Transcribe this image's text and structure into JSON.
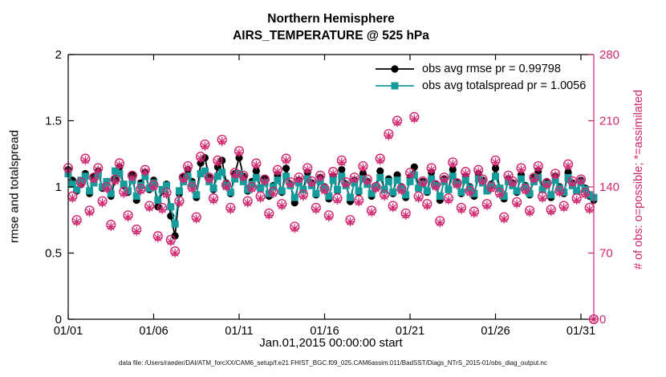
{
  "figure": {
    "colors": {
      "rmse": "#000000",
      "totalspread": "#149c9c",
      "obs": "#d02670",
      "axis": "#000000",
      "background": "#ffffff"
    }
  },
  "chart_data": {
    "type": "line",
    "title": [
      "Northern Hemisphere",
      "AIRS_TEMPERATURE @ 525 hPa"
    ],
    "xlabel": "Jan.01,2015 00:00:00 start",
    "footer": "data file: /Users/raeder/DAI/ATM_forcXX/CAM6_setup/f.e21.FHIST_BGC.f09_025.CAM6assim.011/BadSST/Diags_NTrS_2015-01/obs_diag_output.nc",
    "legend": [
      "obs avg rmse pr = 0.99798",
      "obs avg totalspread pr = 1.0056"
    ],
    "legend_position": "upper-right-inside",
    "grid": false,
    "x": {
      "start": 0,
      "step": 0.25,
      "count": 124,
      "unit": "days since Jan 01 2015"
    },
    "x_ticks": {
      "values": [
        0,
        5,
        10,
        15,
        20,
        25,
        30
      ],
      "labels": [
        "01/01",
        "01/06",
        "01/11",
        "01/16",
        "01/21",
        "01/26",
        "01/31"
      ]
    },
    "left_axis": {
      "label": "rmse and totalspread",
      "range": [
        0,
        2
      ],
      "tick_values": [
        0,
        0.5,
        1,
        1.5,
        2
      ],
      "tick_labels": [
        "0",
        "0.5",
        "1",
        "1.5",
        "2"
      ]
    },
    "right_axis": {
      "label": "# of obs: o=possible; *=assimilated",
      "range": [
        0,
        280
      ],
      "tick_values": [
        0,
        70,
        140,
        210,
        280
      ],
      "tick_labels": [
        "0",
        "70",
        "140",
        "210",
        "280"
      ]
    },
    "series": [
      {
        "id": "rmse",
        "name": "obs avg rmse",
        "axis": "left",
        "marker": "filled-circle",
        "color": "#000000",
        "line": true,
        "values": [
          1.13,
          1.05,
          0.97,
          1.02,
          1.1,
          0.95,
          1.08,
          1.12,
          0.99,
          1.04,
          0.93,
          1.06,
          1.15,
          1.01,
          0.96,
          1.09,
          0.9,
          1.03,
          1.11,
          0.98,
          1.05,
          0.85,
          0.97,
          1.02,
          0.78,
          0.63,
          0.95,
          1.08,
          1.13,
          1.04,
          0.92,
          1.18,
          1.22,
          1.07,
          0.98,
          1.15,
          1.2,
          1.03,
          0.95,
          1.1,
          1.22,
          1.08,
          0.97,
          1.04,
          1.12,
          0.99,
          1.06,
          0.93,
          1.01,
          1.09,
          0.96,
          1.14,
          1.02,
          0.88,
          1.05,
          0.98,
          1.11,
          1.03,
          0.94,
          1.07,
          1.0,
          0.91,
          1.08,
          0.97,
          1.13,
          1.02,
          0.89,
          1.05,
          0.96,
          1.1,
          1.04,
          0.93,
          1.01,
          1.12,
          0.98,
          1.06,
          0.95,
          1.09,
          1.0,
          0.92,
          1.07,
          1.15,
          0.99,
          1.04,
          0.96,
          1.11,
          1.02,
          0.9,
          1.06,
          0.98,
          1.13,
          1.03,
          0.95,
          1.08,
          1.0,
          0.93,
          1.1,
          1.05,
          0.97,
          1.02,
          1.14,
          0.99,
          0.91,
          1.06,
          1.03,
          0.96,
          1.09,
          1.01,
          0.94,
          1.07,
          1.12,
          0.98,
          1.04,
          0.92,
          1.08,
          1.0,
          0.95,
          1.11,
          1.03,
          0.97,
          1.05,
          0.99,
          0.93,
          0.9
        ]
      },
      {
        "id": "totalspread",
        "name": "obs avg totalspread",
        "axis": "left",
        "marker": "filled-square",
        "color": "#149c9c",
        "line": true,
        "values": [
          1.1,
          1.02,
          0.98,
          1.05,
          1.08,
          0.97,
          1.03,
          1.09,
          1.0,
          1.04,
          0.95,
          1.12,
          1.1,
          1.02,
          0.97,
          1.05,
          0.93,
          1.01,
          1.08,
          0.99,
          1.03,
          0.9,
          0.98,
          1.01,
          0.85,
          0.72,
          0.97,
          1.04,
          1.08,
          1.02,
          0.94,
          1.1,
          1.12,
          1.04,
          0.99,
          1.08,
          1.11,
          1.01,
          0.96,
          1.06,
          1.1,
          1.04,
          0.98,
          1.02,
          1.07,
          0.99,
          1.03,
          0.95,
          1.0,
          1.05,
          0.97,
          1.08,
          1.01,
          0.92,
          1.03,
          0.98,
          1.06,
          1.01,
          0.95,
          1.04,
          0.99,
          0.93,
          1.05,
          0.98,
          1.08,
          1.01,
          0.92,
          1.03,
          0.97,
          1.06,
          1.02,
          0.95,
          1.0,
          1.07,
          0.98,
          1.04,
          0.96,
          1.05,
          0.99,
          0.94,
          1.04,
          1.09,
          0.99,
          1.02,
          0.97,
          1.06,
          1.01,
          0.93,
          1.04,
          0.98,
          1.08,
          1.02,
          0.96,
          1.05,
          0.99,
          0.95,
          1.06,
          1.03,
          0.97,
          1.01,
          1.08,
          0.99,
          0.93,
          1.04,
          1.01,
          0.97,
          1.06,
          1.0,
          0.95,
          1.04,
          1.07,
          0.98,
          1.02,
          0.94,
          1.05,
          0.99,
          0.96,
          1.07,
          1.01,
          0.97,
          1.03,
          0.98,
          0.94,
          0.92
        ]
      },
      {
        "id": "possible",
        "name": "# of obs possible",
        "axis": "right",
        "marker": "open-circle",
        "color": "#d02670",
        "line": false,
        "values": [
          160,
          130,
          105,
          145,
          170,
          115,
          150,
          160,
          125,
          140,
          100,
          148,
          165,
          135,
          110,
          152,
          95,
          138,
          158,
          120,
          142,
          88,
          118,
          134,
          84,
          72,
          125,
          150,
          162,
          140,
          108,
          172,
          185,
          150,
          128,
          168,
          190,
          142,
          118,
          155,
          178,
          152,
          125,
          140,
          165,
          130,
          148,
          112,
          135,
          158,
          122,
          170,
          145,
          98,
          150,
          132,
          160,
          146,
          118,
          152,
          138,
          110,
          156,
          128,
          168,
          145,
          105,
          150,
          126,
          162,
          148,
          115,
          140,
          170,
          132,
          196,
          120,
          210,
          138,
          112,
          155,
          214,
          130,
          146,
          122,
          160,
          142,
          104,
          150,
          128,
          166,
          144,
          118,
          156,
          136,
          114,
          158,
          148,
          122,
          140,
          168,
          134,
          108,
          152,
          146,
          124,
          160,
          138,
          115,
          150,
          162,
          130,
          144,
          116,
          154,
          136,
          120,
          164,
          146,
          128,
          148,
          134,
          118,
          0
        ]
      },
      {
        "id": "assimilated",
        "name": "# of obs assimilated",
        "axis": "right",
        "marker": "asterisk",
        "color": "#d02670",
        "line": false,
        "values": [
          158,
          128,
          103,
          143,
          168,
          113,
          148,
          158,
          123,
          138,
          98,
          146,
          163,
          133,
          108,
          150,
          93,
          136,
          156,
          118,
          140,
          86,
          116,
          132,
          82,
          70,
          123,
          148,
          160,
          138,
          106,
          170,
          183,
          148,
          126,
          166,
          188,
          140,
          116,
          153,
          176,
          150,
          123,
          138,
          163,
          128,
          146,
          110,
          133,
          156,
          120,
          168,
          143,
          96,
          148,
          130,
          158,
          144,
          116,
          150,
          136,
          108,
          154,
          126,
          166,
          143,
          103,
          148,
          124,
          160,
          146,
          113,
          138,
          168,
          130,
          194,
          118,
          208,
          136,
          110,
          153,
          212,
          128,
          144,
          120,
          158,
          140,
          102,
          148,
          126,
          164,
          142,
          116,
          154,
          134,
          112,
          156,
          146,
          120,
          138,
          166,
          132,
          106,
          150,
          144,
          122,
          158,
          136,
          113,
          148,
          160,
          128,
          142,
          114,
          152,
          134,
          118,
          162,
          144,
          126,
          146,
          132,
          116,
          0
        ]
      }
    ]
  }
}
